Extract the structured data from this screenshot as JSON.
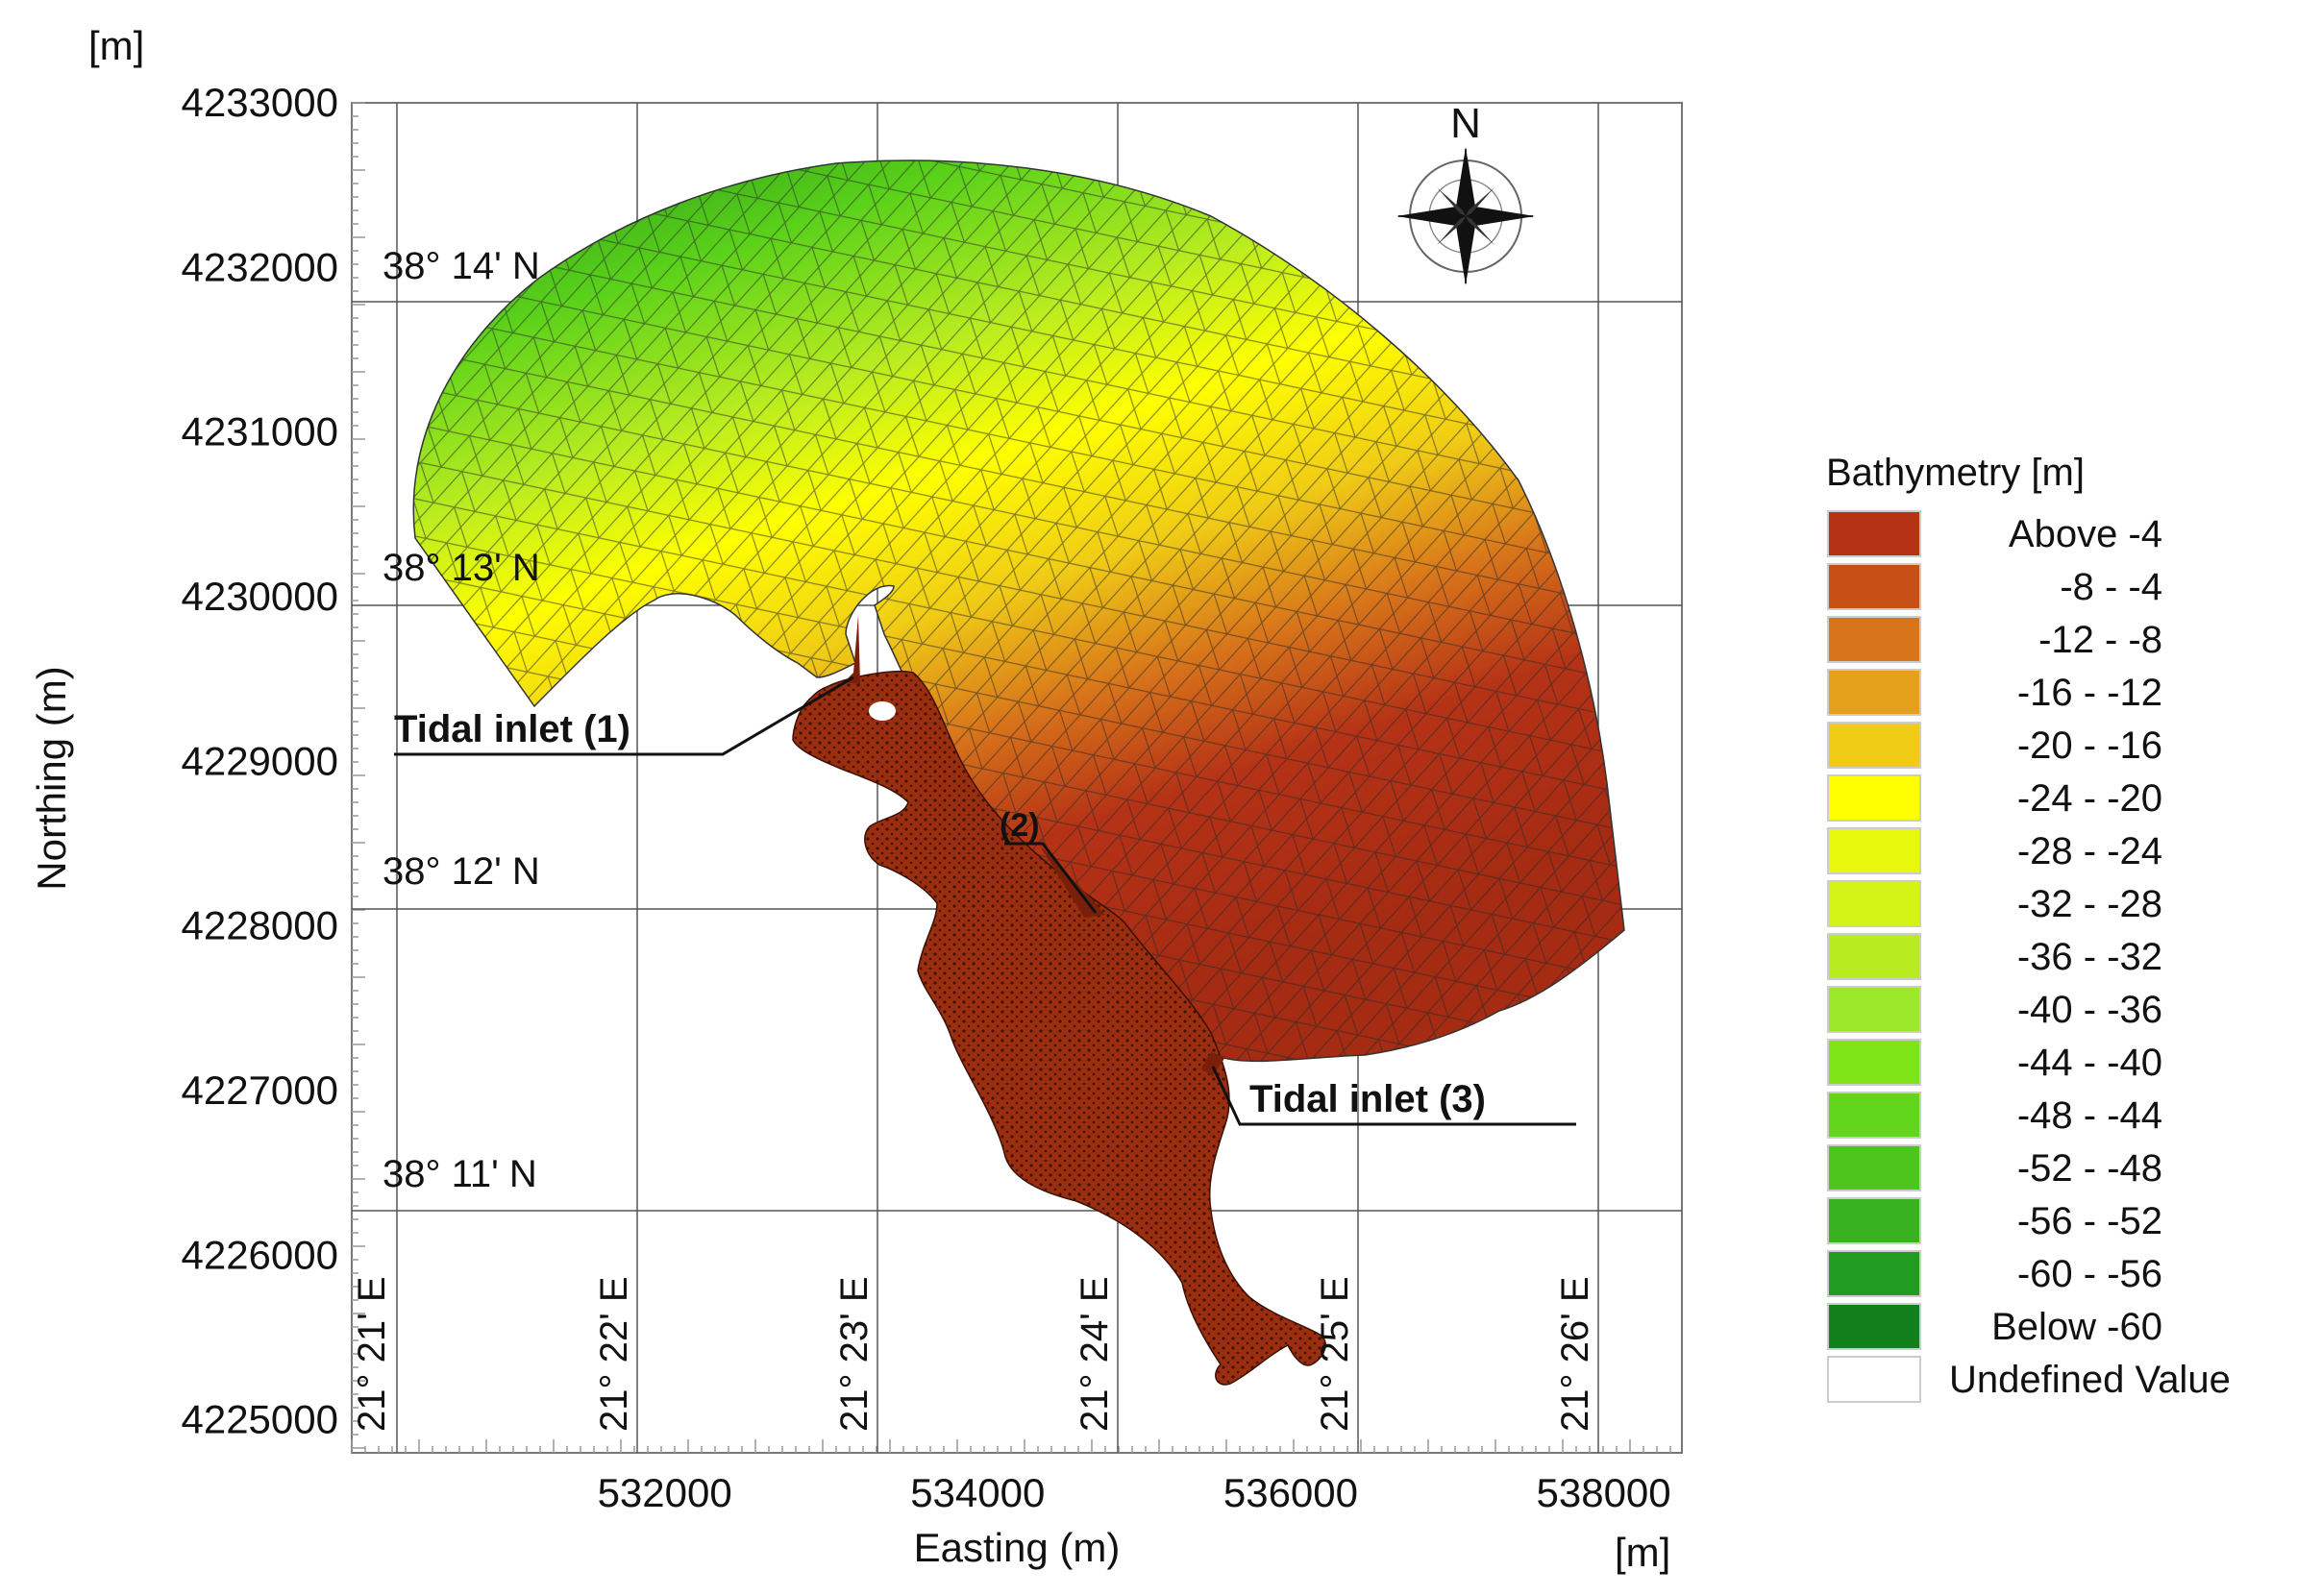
{
  "unit_top": "[m]",
  "unit_bottom": "[m]",
  "axes": {
    "x_label": "Easting (m)",
    "y_label": "Northing (m)",
    "x_range": [
      530000,
      538500
    ],
    "y_range": [
      4224800,
      4233000
    ],
    "x_ticks": [
      "532000",
      "534000",
      "536000",
      "538000"
    ],
    "y_ticks": [
      "4225000",
      "4226000",
      "4227000",
      "4228000",
      "4229000",
      "4230000",
      "4231000",
      "4232000",
      "4233000"
    ]
  },
  "lat_labels": [
    "38° 11' N",
    "38° 12' N",
    "38° 13' N",
    "38° 14' N"
  ],
  "lon_labels": [
    "21° 21' E",
    "21° 22' E",
    "21° 23' E",
    "21° 24' E",
    "21° 25' E",
    "21° 26' E"
  ],
  "compass": {
    "letter": "N"
  },
  "annotations": {
    "inlet1": "Tidal inlet (1)",
    "inlet2": "(2)",
    "inlet3": "Tidal inlet (3)"
  },
  "legend": {
    "title": "Bathymetry [m]",
    "items": [
      {
        "label": "Above   -4",
        "color": "#b53216"
      },
      {
        "label": "-8 -   -4",
        "color": "#c75016"
      },
      {
        "label": "-12 -   -8",
        "color": "#d8751a"
      },
      {
        "label": "-16 - -12",
        "color": "#e6a11c"
      },
      {
        "label": "-20 - -16",
        "color": "#f0cc16"
      },
      {
        "label": "-24 - -20",
        "color": "#ffff00"
      },
      {
        "label": "-28 - -24",
        "color": "#e7f80c"
      },
      {
        "label": "-32 - -28",
        "color": "#d4f317"
      },
      {
        "label": "-36 - -32",
        "color": "#b8ec20"
      },
      {
        "label": "-40 - -36",
        "color": "#9ce82a"
      },
      {
        "label": "-44 - -40",
        "color": "#7ee417"
      },
      {
        "label": "-48 - -44",
        "color": "#62d61a"
      },
      {
        "label": "-52 - -48",
        "color": "#4cc51d"
      },
      {
        "label": "-56 - -52",
        "color": "#38b21f"
      },
      {
        "label": "-60 - -56",
        "color": "#229b21"
      },
      {
        "label": "Below -60",
        "color": "#137e1c"
      },
      {
        "label": "Undefined Value",
        "color": "#ffffff"
      }
    ]
  }
}
